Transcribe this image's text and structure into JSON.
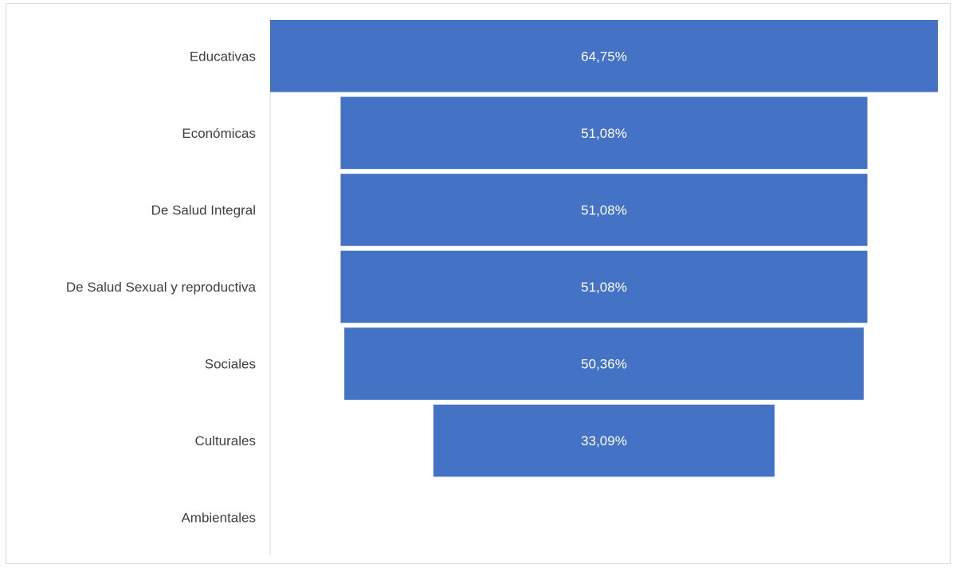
{
  "chart_data": {
    "type": "bar",
    "subtype": "funnel",
    "categories": [
      "Educativas",
      "Económicas",
      "De Salud Integral",
      "De Salud Sexual y reproductiva",
      "Sociales",
      "Culturales",
      "Ambientales"
    ],
    "values": [
      64.75,
      51.08,
      51.08,
      51.08,
      50.36,
      33.09,
      0
    ],
    "data_labels": [
      "64,75%",
      "51,08%",
      "51,08%",
      "51,08%",
      "50,36%",
      "33,09%",
      ""
    ],
    "bar_color": "#4472c4",
    "grid": false,
    "legend": "none"
  }
}
